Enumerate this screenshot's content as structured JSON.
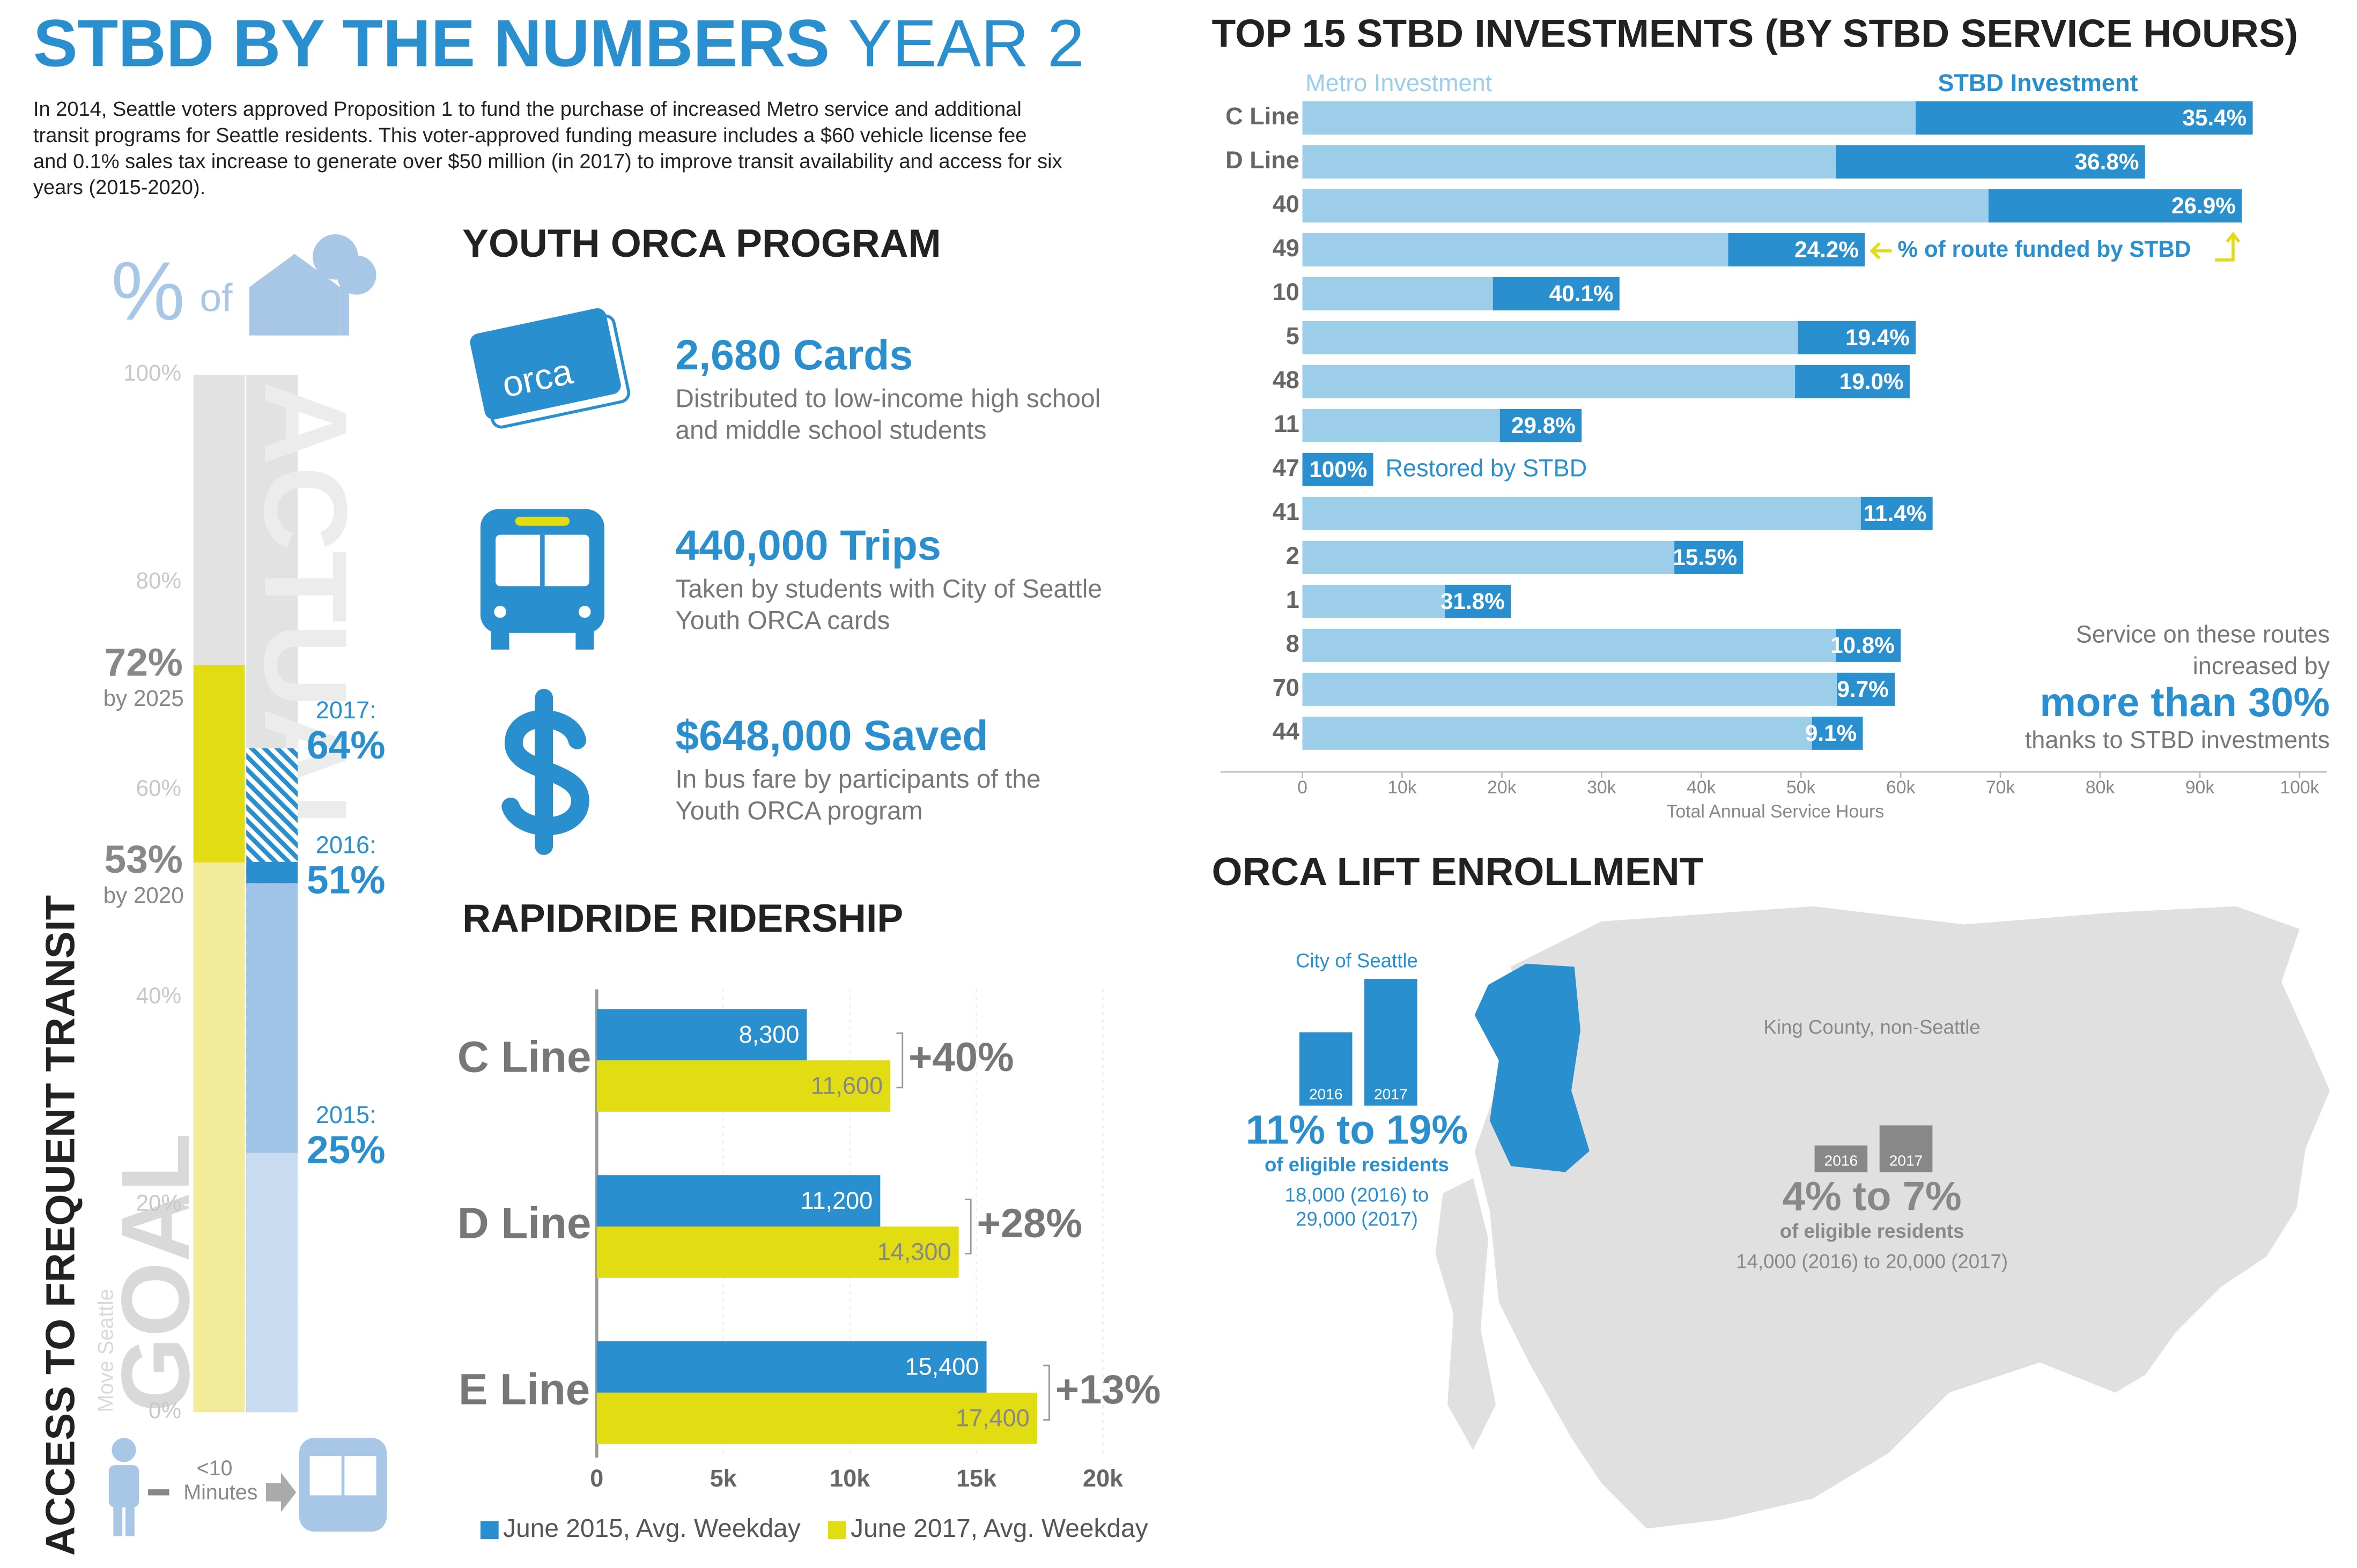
{
  "header": {
    "title": "STBD BY THE NUMBERS",
    "title_suffix": "YEAR 2",
    "intro": [
      "In 2014, Seattle voters approved Proposition 1 to fund the purchase of increased Metro service and additional",
      "transit programs for Seattle residents. This voter-approved funding measure includes a $60 vehicle license fee",
      "and 0.1% sales tax increase to generate over $50 million (in 2017) to improve transit availability and access for six",
      "years (2015-2020)."
    ]
  },
  "access": {
    "title": "ACCESS TO FREQUENT TRANSIT",
    "icon_pct": "%",
    "icon_of": "of",
    "ylim": [
      0,
      100
    ],
    "yticks": [
      {
        "value": 0,
        "label": "0%"
      },
      {
        "value": 20,
        "label": "20%"
      },
      {
        "value": 40,
        "label": "40%"
      },
      {
        "value": 60,
        "label": "60%"
      },
      {
        "value": 80,
        "label": "80%"
      },
      {
        "value": 100,
        "label": "100%"
      }
    ],
    "goal": {
      "name": "GOAL",
      "source": "Move Seattle",
      "targets": [
        {
          "value": 53,
          "label": "53%",
          "note": "by 2020"
        },
        {
          "value": 72,
          "label": "72%",
          "note": "by 2025"
        }
      ]
    },
    "actual": {
      "name": "ACTUAL",
      "points": [
        {
          "year": "2015:",
          "value": 25,
          "label": "25%"
        },
        {
          "year": "2016:",
          "value": 51,
          "label": "51%"
        },
        {
          "year": "2017:",
          "value": 64,
          "label": "64%"
        }
      ]
    },
    "walk_label": [
      "<10",
      "Minutes"
    ]
  },
  "youth_orca": {
    "title": "YOUTH ORCA PROGRAM",
    "card_label": "orca",
    "items": [
      {
        "headline": "2,680 Cards",
        "desc": [
          "Distributed to low-income high school",
          "and middle school students"
        ]
      },
      {
        "headline": "440,000 Trips",
        "desc": [
          "Taken by students with City of Seattle",
          "Youth ORCA cards"
        ]
      },
      {
        "headline": "$648,000 Saved",
        "desc": [
          "In bus fare by participants of the",
          "Youth ORCA program"
        ]
      }
    ]
  },
  "chart_data": [
    {
      "type": "stacked_bar_h",
      "title": "TOP 15 STBD INVESTMENTS (BY STBD SERVICE HOURS)",
      "categories": [
        "C Line",
        "D Line",
        "40",
        "49",
        "10",
        "5",
        "48",
        "11",
        "47",
        "41",
        "2",
        "1",
        "8",
        "70",
        "44"
      ],
      "series": [
        {
          "name": "Metro Investment",
          "color": "#9ccde9",
          "values": [
            61500,
            53500,
            68800,
            42700,
            19100,
            49700,
            49400,
            19800,
            0,
            56000,
            37300,
            14300,
            53500,
            53600,
            51100
          ]
        },
        {
          "name": "STBD Investment",
          "color": "#2a8fcf",
          "values": [
            33800,
            31000,
            25400,
            13700,
            12700,
            11800,
            11500,
            8200,
            7100,
            7200,
            6900,
            6600,
            6500,
            5800,
            5100
          ]
        }
      ],
      "share_labels": [
        "35.4%",
        "36.8%",
        "26.9%",
        "24.2%",
        "40.1%",
        "19.4%",
        "19.0%",
        "29.8%",
        "100%",
        "11.4%",
        "15.5%",
        "31.8%",
        "10.8%",
        "9.7%",
        "9.1%"
      ],
      "xlim": [
        0,
        100000
      ],
      "xticks": [
        0,
        {
          "value": 10000,
          "label": "10k"
        },
        {
          "value": 20000,
          "label": "20k"
        },
        {
          "value": 30000,
          "label": "30k"
        },
        {
          "value": 40000,
          "label": "40k"
        },
        {
          "value": 50000,
          "label": "50k"
        },
        {
          "value": 60000,
          "label": "60k"
        },
        {
          "value": 70000,
          "label": "70k"
        },
        {
          "value": 80000,
          "label": "80k"
        },
        {
          "value": 90000,
          "label": "90k"
        },
        {
          "value": 100000,
          "label": "100k"
        }
      ],
      "xlabel": "Total Annual Service Hours",
      "annotations": {
        "share_note": "% of route funded by STBD",
        "restored": "Restored by STBD",
        "callout": [
          "Service on these routes",
          "increased by"
        ],
        "callout_big": "more than 30%",
        "callout_end": "thanks to STBD investments"
      }
    },
    {
      "type": "grouped_bar_h",
      "title": "RAPIDRIDE RIDERSHIP",
      "categories": [
        "C Line",
        "D Line",
        "E Line"
      ],
      "series": [
        {
          "name": "June 2015, Avg. Weekday",
          "color": "#2a8fcf",
          "values": [
            8300,
            11200,
            15400
          ],
          "value_labels": [
            "8,300",
            "11,200",
            "15,400"
          ]
        },
        {
          "name": "June 2017, Avg. Weekday",
          "color": "#e2dc12",
          "values": [
            11600,
            14300,
            17400
          ],
          "value_labels": [
            "11,600",
            "14,300",
            "17,400"
          ]
        }
      ],
      "change_labels": [
        "+40%",
        "+28%",
        "+13%"
      ],
      "xlim": [
        0,
        20000
      ],
      "xticks": [
        0,
        {
          "value": 5000,
          "label": "5k"
        },
        {
          "value": 10000,
          "label": "10k"
        },
        {
          "value": 15000,
          "label": "15k"
        },
        {
          "value": 20000,
          "label": "20k"
        }
      ]
    }
  ],
  "orca_lift": {
    "title": "ORCA LIFT ENROLLMENT",
    "seattle": {
      "name": "City of Seattle",
      "categories": [
        "2016",
        "2017"
      ],
      "values": [
        11,
        19
      ],
      "headline": "11% to 19%",
      "subhead": "of eligible residents",
      "detail": [
        "18,000 (2016) to",
        "29,000 (2017)"
      ]
    },
    "king": {
      "name": "King County, non-Seattle",
      "categories": [
        "2016",
        "2017"
      ],
      "values": [
        4,
        7
      ],
      "headline": "4% to 7%",
      "subhead": "of eligible residents",
      "detail": [
        "14,000 (2016) to 20,000 (2017)"
      ]
    }
  }
}
